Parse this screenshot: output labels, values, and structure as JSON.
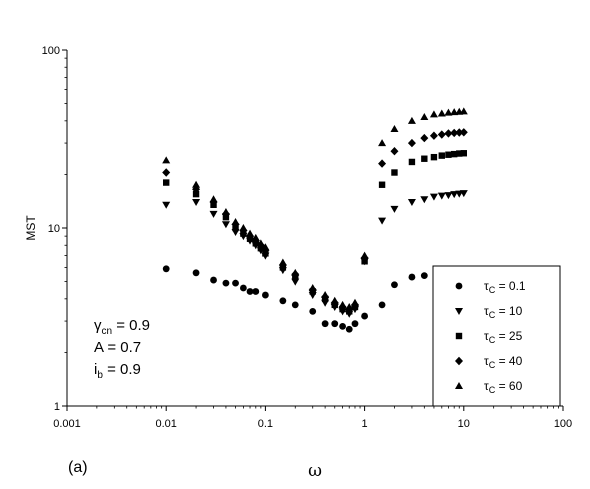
{
  "chart_data": {
    "type": "scatter",
    "title": "",
    "xlabel": "ω",
    "ylabel": "MST",
    "xscale": "log",
    "yscale": "log",
    "xlim": [
      0.001,
      100
    ],
    "ylim": [
      1,
      100
    ],
    "x_tick_labels": [
      "0.001",
      "0.01",
      "0.1",
      "1",
      "10",
      "100"
    ],
    "y_tick_labels": [
      "1",
      "10",
      "100"
    ],
    "grid": false,
    "legend_position": "bottom-right",
    "panel_label": "(a)",
    "parameters": [
      {
        "symbol": "γ",
        "subscript": "cn",
        "text": " = 0.9"
      },
      {
        "symbol": "A",
        "subscript": "",
        "text": " = 0.7"
      },
      {
        "symbol": "i",
        "subscript": "b",
        "text": " = 0.9"
      }
    ],
    "series": [
      {
        "name": "τC = 0.1",
        "tau_symbol": "τ",
        "tau_sub": "C",
        "tau_value": "0.1",
        "marker": "circle",
        "x": [
          0.01,
          0.02,
          0.03,
          0.04,
          0.05,
          0.06,
          0.07,
          0.08,
          0.1,
          0.15,
          0.2,
          0.3,
          0.4,
          0.5,
          0.6,
          0.7,
          0.8,
          1.0,
          1.5,
          2,
          3,
          4
        ],
        "y": [
          5.9,
          5.6,
          5.1,
          4.9,
          4.9,
          4.6,
          4.4,
          4.4,
          4.2,
          3.9,
          3.7,
          3.4,
          2.9,
          2.9,
          2.8,
          2.7,
          2.9,
          3.2,
          3.7,
          4.8,
          5.3,
          5.4
        ]
      },
      {
        "name": "τC = 10",
        "tau_symbol": "τ",
        "tau_sub": "C",
        "tau_value": "10",
        "marker": "triangle-down",
        "x": [
          0.01,
          0.02,
          0.03,
          0.04,
          0.05,
          0.06,
          0.07,
          0.08,
          0.09,
          0.1,
          0.15,
          0.2,
          0.3,
          0.4,
          0.5,
          0.6,
          0.7,
          0.8,
          1.0,
          1.5,
          2,
          3,
          4,
          5,
          6,
          7,
          8,
          9,
          10
        ],
        "y": [
          13.5,
          14.0,
          12.0,
          10.5,
          9.5,
          9.0,
          8.5,
          8.0,
          7.5,
          7.0,
          5.8,
          5.0,
          4.2,
          3.8,
          3.6,
          3.4,
          3.3,
          3.5,
          6.5,
          11.0,
          12.8,
          14.0,
          14.5,
          15.0,
          15.2,
          15.3,
          15.5,
          15.6,
          15.7
        ]
      },
      {
        "name": "τC = 25",
        "tau_symbol": "τ",
        "tau_sub": "C",
        "tau_value": "25",
        "marker": "square",
        "x": [
          0.01,
          0.02,
          0.03,
          0.04,
          0.05,
          0.06,
          0.07,
          0.08,
          0.09,
          0.1,
          0.15,
          0.2,
          0.3,
          0.4,
          0.5,
          0.6,
          0.7,
          0.8,
          1.0,
          1.5,
          2,
          3,
          4,
          5,
          6,
          7,
          8,
          9,
          10
        ],
        "y": [
          18.0,
          15.5,
          13.5,
          11.5,
          10.0,
          9.3,
          8.7,
          8.2,
          7.7,
          7.2,
          6.0,
          5.3,
          4.4,
          4.0,
          3.7,
          3.5,
          3.4,
          3.6,
          6.5,
          17.5,
          20.5,
          23.5,
          24.5,
          25.0,
          25.5,
          25.8,
          26.0,
          26.2,
          26.3
        ]
      },
      {
        "name": "τC = 40",
        "tau_symbol": "τ",
        "tau_sub": "C",
        "tau_value": "40",
        "marker": "diamond",
        "x": [
          0.01,
          0.02,
          0.03,
          0.04,
          0.05,
          0.06,
          0.07,
          0.08,
          0.09,
          0.1,
          0.15,
          0.2,
          0.3,
          0.4,
          0.5,
          0.6,
          0.7,
          0.8,
          1.0,
          1.5,
          2,
          3,
          4,
          5,
          6,
          7,
          8,
          9,
          10
        ],
        "y": [
          20.5,
          16.5,
          14.0,
          12.0,
          10.5,
          9.7,
          9.0,
          8.5,
          8.0,
          7.5,
          6.2,
          5.5,
          4.5,
          4.1,
          3.8,
          3.6,
          3.5,
          3.7,
          6.8,
          23.0,
          27.0,
          30.0,
          32.0,
          33.0,
          33.5,
          34.0,
          34.2,
          34.4,
          34.5
        ]
      },
      {
        "name": "τC = 60",
        "tau_symbol": "τ",
        "tau_sub": "C",
        "tau_value": "60",
        "marker": "triangle-up",
        "x": [
          0.01,
          0.02,
          0.03,
          0.04,
          0.05,
          0.06,
          0.07,
          0.08,
          0.09,
          0.1,
          0.15,
          0.2,
          0.3,
          0.4,
          0.5,
          0.6,
          0.7,
          0.8,
          1.0,
          1.5,
          2,
          3,
          4,
          5,
          6,
          7,
          8,
          9,
          10
        ],
        "y": [
          24.0,
          17.5,
          14.5,
          12.3,
          10.8,
          10.0,
          9.3,
          8.8,
          8.2,
          7.8,
          6.4,
          5.6,
          4.6,
          4.2,
          3.9,
          3.7,
          3.6,
          3.8,
          7.0,
          30.0,
          36.0,
          40.0,
          42.0,
          43.5,
          44.0,
          44.5,
          44.8,
          45.0,
          45.2
        ]
      }
    ]
  }
}
